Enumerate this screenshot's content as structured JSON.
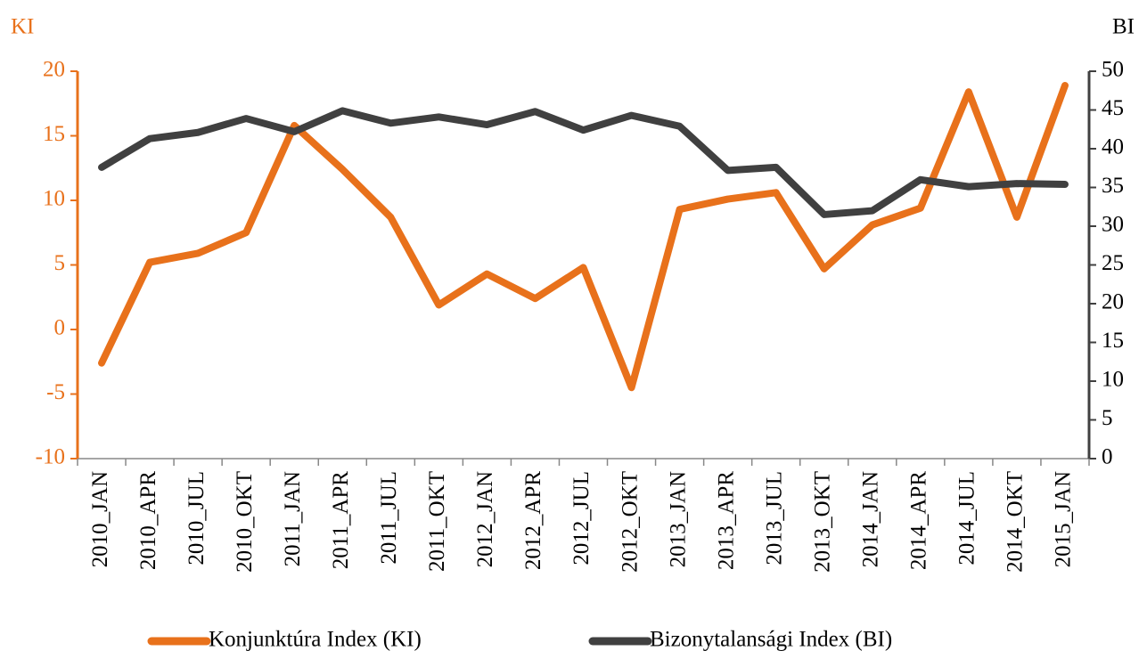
{
  "chart_data": {
    "type": "line",
    "y_label": "KI",
    "y2_label": "BI",
    "categories": [
      "2010_JAN",
      "2010_APR",
      "2010_JUL",
      "2010_OKT",
      "2011_JAN",
      "2011_APR",
      "2011_JUL",
      "2011_OKT",
      "2012_JAN",
      "2012_APR",
      "2012_JUL",
      "2012_OKT",
      "2013_JAN",
      "2013_APR",
      "2013_JUL",
      "2013_OKT",
      "2014_JAN",
      "2014_APR",
      "2014_JUL",
      "2014_OKT",
      "2015_JAN"
    ],
    "series": [
      {
        "name": "Konjunktúra Index (KI)",
        "color": "#e8711b",
        "axis": "y",
        "values": [
          -2.6,
          5.2,
          5.9,
          7.5,
          15.8,
          12.4,
          8.7,
          1.9,
          4.3,
          2.4,
          4.8,
          -4.5,
          9.3,
          10.1,
          10.6,
          4.7,
          8.1,
          9.4,
          18.4,
          8.7,
          18.9
        ]
      },
      {
        "name": "Bizonytalansági Index (BI)",
        "color": "#404040",
        "axis": "y2",
        "values": [
          37.6,
          41.3,
          42.1,
          43.9,
          42.2,
          44.9,
          43.3,
          44.1,
          43.1,
          44.8,
          42.4,
          44.3,
          42.9,
          37.2,
          37.6,
          31.5,
          32.0,
          36.0,
          35.1,
          35.5,
          35.4
        ]
      }
    ],
    "ylim": [
      -10,
      20
    ],
    "yticks": [
      -10,
      -5,
      0,
      5,
      10,
      15,
      20
    ],
    "y2lim": [
      0,
      50
    ],
    "y2ticks": [
      0,
      5,
      10,
      15,
      20,
      25,
      30,
      35,
      40,
      45,
      50
    ],
    "legend": "bottom"
  }
}
